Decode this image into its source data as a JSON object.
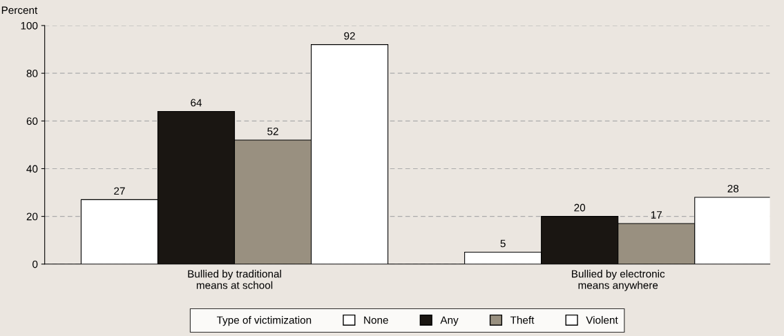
{
  "chart_data": {
    "type": "bar",
    "ylabel": "Percent",
    "legend_title": "Type of victimization",
    "categories": [
      "Bullied by traditional\nmeans at school",
      "Bullied by electronic\nmeans anywhere"
    ],
    "series": [
      {
        "name": "None",
        "color": "#ffffff",
        "values": [
          27,
          5
        ]
      },
      {
        "name": "Any",
        "color": "#1a1612",
        "values": [
          64,
          20
        ]
      },
      {
        "name": "Theft",
        "color": "#999080",
        "values": [
          52,
          17
        ]
      },
      {
        "name": "Violent",
        "color": "#ffffff",
        "values": [
          92,
          28
        ]
      }
    ],
    "ylim": [
      0,
      100
    ],
    "yticks": [
      0,
      20,
      40,
      60,
      80,
      100
    ],
    "grid": "y",
    "legend": "bottom",
    "data_labels": true
  }
}
